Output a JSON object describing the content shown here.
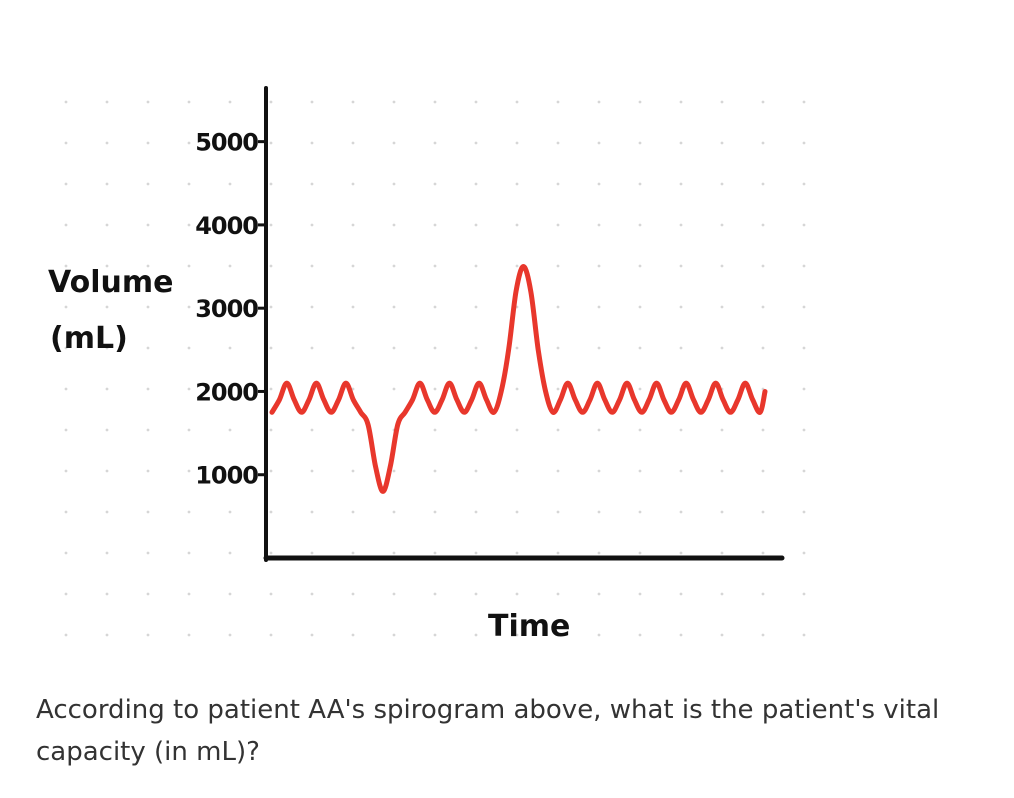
{
  "chart_data": {
    "type": "line",
    "title": "",
    "xlabel": "Time",
    "ylabel_line1": "Volume",
    "ylabel_line2": "(mL)",
    "yticks": [
      1000,
      2000,
      3000,
      4000,
      5000
    ],
    "ytick_labels": [
      "1000",
      "2000",
      "3000",
      "4000",
      "5000"
    ],
    "ylim": [
      0,
      5500
    ],
    "xlim": [
      0,
      100
    ],
    "grid": "dotted",
    "series": [
      {
        "color": "#e8372c",
        "x": [
          0,
          1.5,
          3,
          4.5,
          6,
          7.5,
          9,
          10.5,
          12,
          13.5,
          15,
          16.5,
          18,
          19.5,
          21,
          22.5,
          24,
          25.5,
          27,
          28.5,
          30,
          31.5,
          33,
          34.5,
          36,
          37.5,
          39,
          40.5,
          42,
          43.5,
          45,
          46.5,
          48,
          49.5,
          51,
          52.5,
          54,
          55.5,
          57,
          58.5,
          60,
          61.5,
          63,
          64.5,
          66,
          67.5,
          69,
          70.5,
          72,
          73.5,
          75,
          76.5,
          78,
          79.5,
          81,
          82.5,
          84,
          85.5,
          87,
          88.5,
          90,
          91.5,
          93,
          94.5,
          96,
          97.5,
          99,
          100
        ],
        "y": [
          1750,
          1900,
          2100,
          1900,
          1750,
          1900,
          2100,
          1900,
          1750,
          1900,
          2100,
          1900,
          1750,
          1600,
          1100,
          800,
          1100,
          1600,
          1750,
          1900,
          2100,
          1900,
          1750,
          1900,
          2100,
          1900,
          1750,
          1900,
          2100,
          1900,
          1750,
          2000,
          2500,
          3200,
          3500,
          3200,
          2500,
          2000,
          1750,
          1900,
          2100,
          1900,
          1750,
          1900,
          2100,
          1900,
          1750,
          1900,
          2100,
          1900,
          1750,
          1900,
          2100,
          1900,
          1750,
          1900,
          2100,
          1900,
          1750,
          1900,
          2100,
          1900,
          1750,
          1900,
          2100,
          1900,
          1750,
          2000
        ]
      }
    ]
  },
  "question": "According to patient AA's spirogram above, what is the patient's vital capacity (in mL)?"
}
